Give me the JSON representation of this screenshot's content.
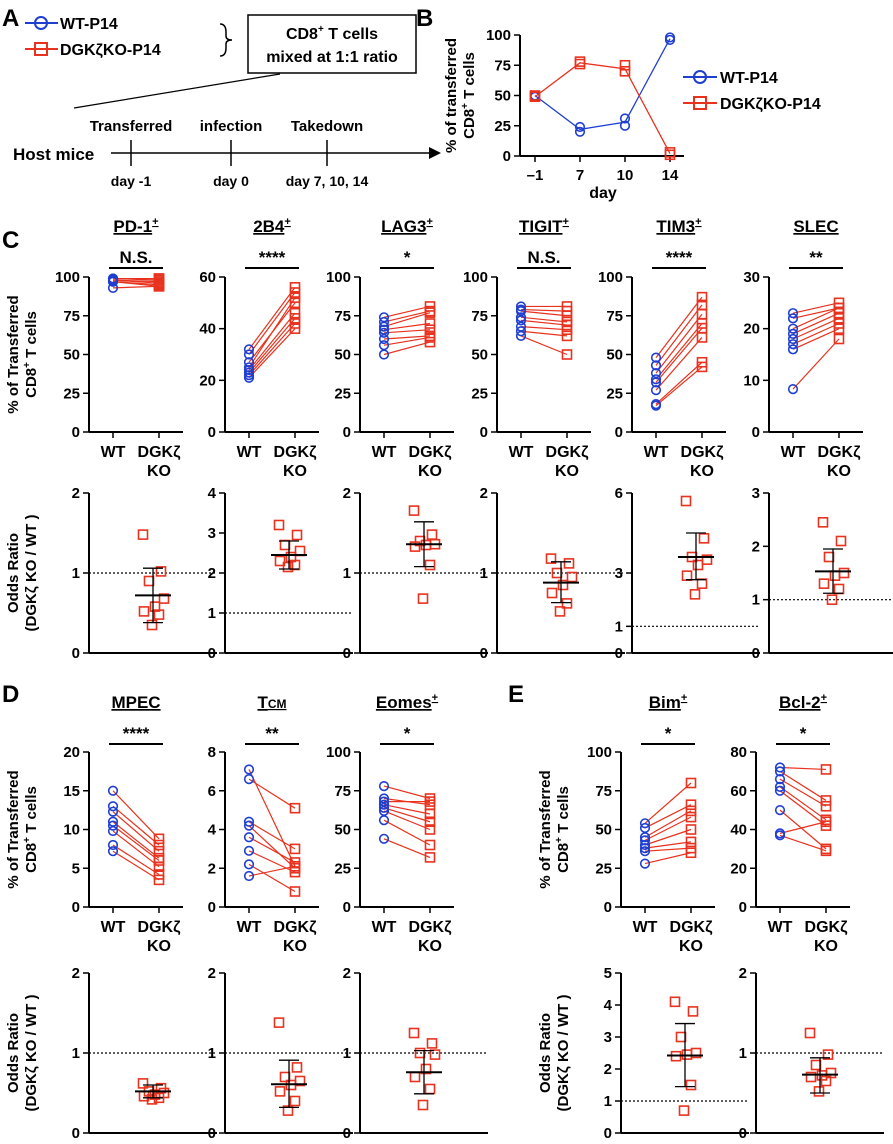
{
  "panel_labels": {
    "a": "A",
    "b": "B",
    "c": "C",
    "d": "D",
    "e": "E"
  },
  "schematic": {
    "legend": [
      {
        "label": "WT-P14",
        "color": "#1f3fd1",
        "marker": "circle"
      },
      {
        "label": "DGKζKO-P14",
        "color": "#e8321e",
        "marker": "square"
      }
    ],
    "box_line1": "CD8",
    "box_sup": "+",
    "box_line1_rest": " T cells",
    "box_line2": "mixed at 1:1 ratio",
    "host": "Host mice",
    "events": [
      {
        "top": "Transferred",
        "bottom": "day -1"
      },
      {
        "top": "infection",
        "bottom": "day 0"
      },
      {
        "top": "Takedown",
        "bottom": "day 7, 10, 14"
      }
    ]
  },
  "colors": {
    "wt": "#1f3fd1",
    "ko": "#e8321e",
    "line": "#e8321e"
  },
  "chart_data": [
    {
      "id": "B",
      "type": "line",
      "ylabel_line1": "% of transferred",
      "ylabel_line2": "CD8",
      "ylabel_sup": "+",
      "ylabel_rest": " T cells",
      "xlabel": "day",
      "categories": [
        "–1",
        "7",
        "10",
        "14"
      ],
      "yticks": [
        "0",
        "25",
        "50",
        "75",
        "100"
      ],
      "ylim": [
        0,
        100
      ],
      "legend_position": "right",
      "series": [
        {
          "name": "WT-P14",
          "marker": "circle",
          "mean": [
            50,
            22,
            28,
            97
          ],
          "points": [
            [
              50,
              49
            ],
            [
              20,
              24
            ],
            [
              25,
              31
            ],
            [
              96,
              98
            ]
          ]
        },
        {
          "name": "DGKζKO-P14",
          "marker": "square",
          "mean": [
            49,
            77,
            72,
            2
          ],
          "points": [
            [
              49,
              50
            ],
            [
              76,
              78
            ],
            [
              70,
              75
            ],
            [
              1,
              3
            ]
          ]
        }
      ]
    },
    {
      "id": "C-PD1",
      "type": "paired",
      "title": "PD-1",
      "title_sup": "+",
      "sig": "N.S.",
      "ylabel_line1": "% of Transferred",
      "ylabel_line2": "CD8",
      "ylabel_sup": "+",
      "ylabel_rest": " T cells",
      "categories": [
        "WT",
        "DGKζ",
        "KO"
      ],
      "yticks": [
        "0",
        "25",
        "50",
        "75",
        "100"
      ],
      "ylim": [
        0,
        100
      ],
      "wt": [
        99,
        98,
        97,
        99,
        98,
        97,
        99,
        93
      ],
      "ko": [
        98,
        96,
        94,
        99,
        97,
        95,
        99,
        94
      ]
    },
    {
      "id": "C-2B4",
      "type": "paired",
      "title": "2B4",
      "title_sup": "+",
      "sig": "****",
      "categories": [
        "WT",
        "DGKζ",
        "KO"
      ],
      "yticks": [
        "0",
        "20",
        "40",
        "60"
      ],
      "ylim": [
        0,
        60
      ],
      "wt": [
        32,
        30,
        27,
        25,
        24,
        23,
        22,
        21
      ],
      "ko": [
        56,
        54,
        50,
        52,
        46,
        44,
        42,
        40
      ]
    },
    {
      "id": "C-LAG3",
      "type": "paired",
      "title": "LAG3",
      "title_sup": "+",
      "sig": "*",
      "categories": [
        "WT",
        "DGKζ",
        "KO"
      ],
      "yticks": [
        "0",
        "25",
        "50",
        "75",
        "100"
      ],
      "ylim": [
        0,
        100
      ],
      "wt": [
        74,
        71,
        68,
        66,
        64,
        60,
        56,
        50
      ],
      "ko": [
        81,
        78,
        77,
        70,
        66,
        62,
        61,
        58
      ]
    },
    {
      "id": "C-TIGIT",
      "type": "paired",
      "title": "TIGIT",
      "title_sup": "+",
      "sig": "N.S.",
      "categories": [
        "WT",
        "DGKζ",
        "KO"
      ],
      "yticks": [
        "0",
        "25",
        "50",
        "75",
        "100"
      ],
      "ylim": [
        0,
        100
      ],
      "wt": [
        81,
        79,
        78,
        74,
        72,
        68,
        65,
        62
      ],
      "ko": [
        81,
        78,
        75,
        71,
        69,
        66,
        62,
        50
      ]
    },
    {
      "id": "C-TIM3",
      "type": "paired",
      "title": "TIM3",
      "title_sup": "+",
      "sig": "****",
      "categories": [
        "WT",
        "DGKζ",
        "KO"
      ],
      "yticks": [
        "0",
        "25",
        "50",
        "75",
        "100"
      ],
      "ylim": [
        0,
        100
      ],
      "wt": [
        48,
        43,
        38,
        34,
        32,
        27,
        18,
        17
      ],
      "ko": [
        87,
        82,
        76,
        70,
        67,
        61,
        45,
        42
      ]
    },
    {
      "id": "C-SLEC",
      "type": "paired",
      "title": "SLEC",
      "title_sup": "",
      "sig": "**",
      "categories": [
        "WT",
        "DGKζ",
        "KO"
      ],
      "yticks": [
        "0",
        "10",
        "20",
        "30"
      ],
      "ylim": [
        0,
        30
      ],
      "wt": [
        23,
        22,
        20,
        19,
        18,
        17,
        16,
        8.3
      ],
      "ko": [
        25,
        24,
        24,
        23,
        22,
        21,
        20,
        18
      ]
    },
    {
      "id": "C-PD1-OR",
      "type": "scatter",
      "ylabel_line1": "Odds Ratio",
      "ylabel_line2": "(DGKζ KO / WT )",
      "yticks": [
        "0",
        "1",
        "2"
      ],
      "ylim": [
        0,
        2
      ],
      "ref": 1,
      "points": [
        1.48,
        1.02,
        0.9,
        0.68,
        0.58,
        0.52,
        0.48,
        0.35
      ],
      "mean": 0.72,
      "sd_low": 0.38,
      "sd_high": 1.06
    },
    {
      "id": "C-2B4-OR",
      "type": "scatter",
      "yticks": [
        "0",
        "1",
        "2",
        "3",
        "4"
      ],
      "ylim": [
        0,
        4
      ],
      "ref": 1,
      "points": [
        3.2,
        2.95,
        2.7,
        2.55,
        2.4,
        2.3,
        2.2,
        2.15
      ],
      "mean": 2.45,
      "sd_low": 2.1,
      "sd_high": 2.8
    },
    {
      "id": "C-LAG3-OR",
      "type": "scatter",
      "yticks": [
        "0",
        "1",
        "2"
      ],
      "ylim": [
        0,
        2
      ],
      "ref": 1,
      "points": [
        1.78,
        1.48,
        1.4,
        1.36,
        1.35,
        1.33,
        1.1,
        0.68
      ],
      "mean": 1.36,
      "sd_low": 1.08,
      "sd_high": 1.64
    },
    {
      "id": "C-TIGIT-OR",
      "type": "scatter",
      "yticks": [
        "0",
        "1",
        "2"
      ],
      "ylim": [
        0,
        2
      ],
      "ref": 1,
      "points": [
        1.18,
        1.12,
        1.0,
        0.95,
        0.85,
        0.75,
        0.62,
        0.52
      ],
      "mean": 0.88,
      "sd_low": 0.63,
      "sd_high": 1.14
    },
    {
      "id": "C-TIM3-OR",
      "type": "scatter",
      "yticks": [
        "0",
        "1",
        "3",
        "6"
      ],
      "ylim": [
        0,
        6
      ],
      "ref": 1,
      "points": [
        5.7,
        4.3,
        3.6,
        3.5,
        3.3,
        2.9,
        2.6,
        2.2
      ],
      "mean": 3.6,
      "sd_low": 2.75,
      "sd_high": 4.5
    },
    {
      "id": "C-SLEC-OR",
      "type": "scatter",
      "yticks": [
        "0",
        "1",
        "2",
        "3"
      ],
      "ylim": [
        0,
        3
      ],
      "ref": 1,
      "points": [
        2.45,
        2.1,
        1.8,
        1.5,
        1.45,
        1.3,
        1.2,
        1.0
      ],
      "mean": 1.53,
      "sd_low": 1.12,
      "sd_high": 1.95
    },
    {
      "id": "D-MPEC",
      "type": "paired",
      "title": "MPEC",
      "title_sup": "",
      "sig": "****",
      "ylabel_line1": "% of Transferred",
      "ylabel_line2": "CD8",
      "ylabel_sup": "+",
      "ylabel_rest": " T cells",
      "categories": [
        "WT",
        "DGKζ",
        "KO"
      ],
      "yticks": [
        "0",
        "5",
        "10",
        "15",
        "20"
      ],
      "ylim": [
        0,
        20
      ],
      "wt": [
        15,
        13,
        12.3,
        11,
        10.5,
        9.8,
        8,
        7.2
      ],
      "ko": [
        8.8,
        8,
        7.2,
        6.3,
        6,
        5.2,
        4.2,
        3.5
      ]
    },
    {
      "id": "D-TCM",
      "type": "paired",
      "title": "T",
      "title_sub": "CM",
      "title_sup": "",
      "sig": "**",
      "categories": [
        "WT",
        "DGKζ",
        "KO"
      ],
      "yticks": [
        "0",
        "2",
        "4",
        "6",
        "8"
      ],
      "ylim": [
        0,
        8
      ],
      "wt": [
        7.1,
        6.6,
        4.4,
        4.2,
        3.6,
        2.9,
        2.2,
        1.6
      ],
      "ko": [
        2.1,
        5.1,
        3.0,
        2.0,
        2.3,
        1.8,
        0.8,
        2.1
      ]
    },
    {
      "id": "D-Eomes",
      "type": "paired",
      "title": "Eomes",
      "title_sup": "+",
      "sig": "*",
      "categories": [
        "WT",
        "DGKζ",
        "KO"
      ],
      "yticks": [
        "0",
        "25",
        "50",
        "75",
        "100"
      ],
      "ylim": [
        0,
        100
      ],
      "wt": [
        78,
        70,
        68,
        66,
        64,
        62,
        56,
        44
      ],
      "ko": [
        70,
        66,
        68,
        60,
        55,
        50,
        40,
        32
      ]
    },
    {
      "id": "D-MPEC-OR",
      "type": "scatter",
      "ylabel_line1": "Odds Ratio",
      "ylabel_line2": "(DGKζ KO / WT )",
      "yticks": [
        "0",
        "1",
        "2"
      ],
      "ylim": [
        0,
        2
      ],
      "ref": 1,
      "points": [
        0.62,
        0.56,
        0.52,
        0.5,
        0.48,
        0.46,
        0.44,
        0.42
      ],
      "mean": 0.52,
      "sd_low": 0.44,
      "sd_high": 0.6
    },
    {
      "id": "D-TCM-OR",
      "type": "scatter",
      "yticks": [
        "0",
        "1",
        "2"
      ],
      "ylim": [
        0,
        2
      ],
      "ref": 1,
      "points": [
        1.38,
        0.82,
        0.7,
        0.65,
        0.6,
        0.52,
        0.4,
        0.28
      ],
      "mean": 0.61,
      "sd_low": 0.32,
      "sd_high": 0.91
    },
    {
      "id": "D-Eomes-OR",
      "type": "scatter",
      "yticks": [
        "0",
        "1",
        "2"
      ],
      "ylim": [
        0,
        2
      ],
      "ref": 1,
      "points": [
        1.25,
        1.12,
        1.0,
        0.98,
        0.8,
        0.7,
        0.55,
        0.35
      ],
      "mean": 0.76,
      "sd_low": 0.49,
      "sd_high": 1.03
    },
    {
      "id": "E-Bim",
      "type": "paired",
      "title": "Bim",
      "title_sup": "+",
      "sig": "*",
      "ylabel_line1": "% of Transferred",
      "ylabel_line2": "CD8",
      "ylabel_sup": "+",
      "ylabel_rest": " T cells",
      "categories": [
        "WT",
        "DGKζ",
        "KO"
      ],
      "yticks": [
        "0",
        "25",
        "50",
        "75",
        "100"
      ],
      "ylim": [
        0,
        100
      ],
      "wt": [
        54,
        51,
        45,
        43,
        40,
        38,
        36,
        28
      ],
      "ko": [
        80,
        66,
        62,
        58,
        50,
        42,
        38,
        35
      ]
    },
    {
      "id": "E-Bcl2",
      "type": "paired",
      "title": "Bcl-2",
      "title_sup": "+",
      "sig": "*",
      "categories": [
        "WT",
        "DGKζ",
        "KO"
      ],
      "yticks": [
        "0",
        "20",
        "40",
        "60",
        "80"
      ],
      "ylim": [
        0,
        80
      ],
      "wt": [
        72,
        70,
        66,
        62,
        60,
        50,
        38,
        37
      ],
      "ko": [
        71,
        55,
        52,
        45,
        42,
        30,
        44,
        29
      ]
    },
    {
      "id": "E-Bim-OR",
      "type": "scatter",
      "ylabel_line1": "Odds Ratio",
      "ylabel_line2": "(DGKζ KO / WT )",
      "yticks": [
        "0",
        "1",
        "2",
        "3",
        "4",
        "5"
      ],
      "ylim": [
        0,
        5
      ],
      "ref": 1,
      "points": [
        4.1,
        3.8,
        3.0,
        2.5,
        2.45,
        2.4,
        1.5,
        0.7
      ],
      "mean": 2.42,
      "sd_low": 1.45,
      "sd_high": 3.42
    },
    {
      "id": "E-Bcl2-OR",
      "type": "scatter",
      "yticks": [
        "0",
        "1",
        "2"
      ],
      "ylim": [
        0,
        2
      ],
      "ref": 1,
      "points": [
        1.25,
        0.98,
        0.85,
        0.75,
        0.72,
        0.7,
        0.65,
        0.52
      ],
      "mean": 0.73,
      "sd_low": 0.5,
      "sd_high": 0.94
    }
  ]
}
